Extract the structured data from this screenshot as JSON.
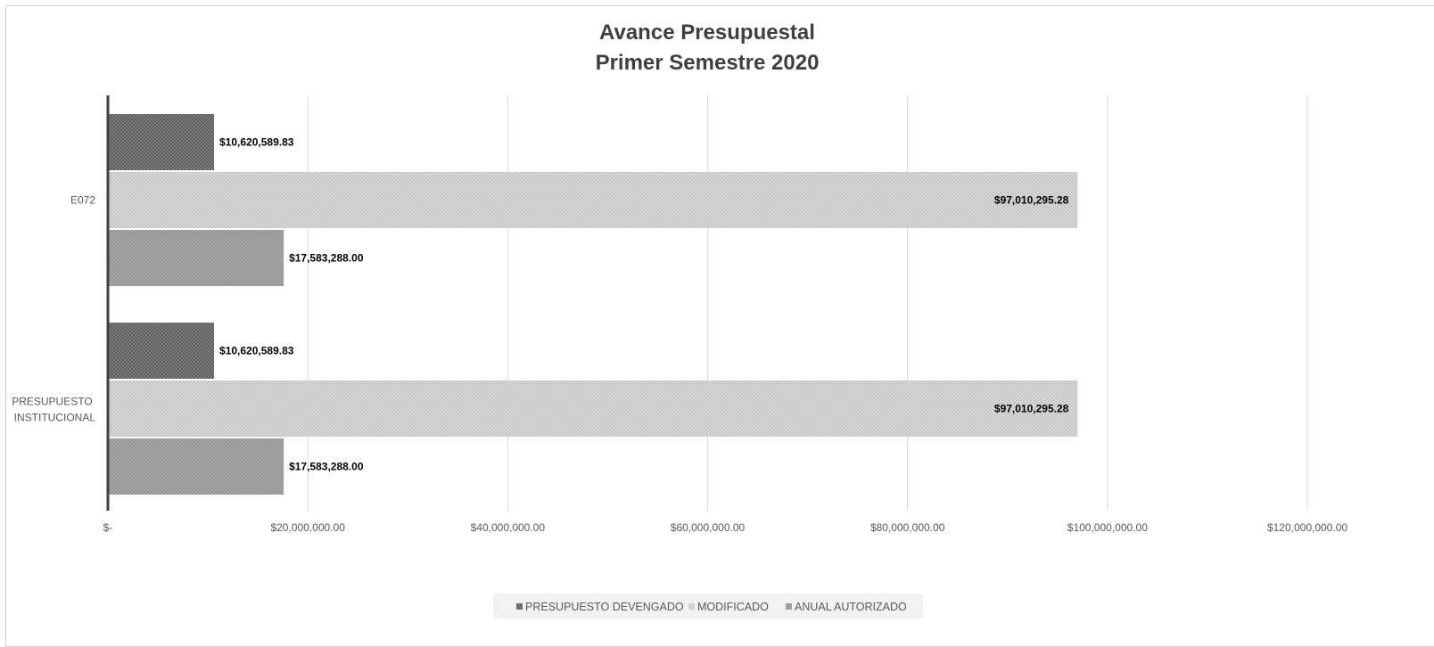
{
  "chart_data": {
    "type": "bar",
    "orientation": "horizontal",
    "title": [
      "Avance Presupuestal",
      "Primer Semestre 2020"
    ],
    "categories": [
      "E072",
      "PRESUPUESTO INSTITUCIONAL"
    ],
    "series": [
      {
        "name": "PRESUPUESTO DEVENGADO",
        "color": "#6e6e6e",
        "values": [
          10620589.83,
          10620589.83
        ],
        "labels": [
          "$10,620,589.83",
          "$10,620,589.83"
        ]
      },
      {
        "name": "MODIFICADO",
        "color": "#cfcfcf",
        "values": [
          97010295.28,
          97010295.28
        ],
        "labels": [
          "$97,010,295.28",
          "$97,010,295.28"
        ]
      },
      {
        "name": "ANUAL AUTORIZADO",
        "color": "#9e9e9e",
        "values": [
          17583288.0,
          17583288.0
        ],
        "labels": [
          "$17,583,288.00",
          "$17,583,288.00"
        ]
      }
    ],
    "xlim": [
      0,
      120000000
    ],
    "xticks": [
      {
        "value": 0,
        "label": "$-"
      },
      {
        "value": 20000000,
        "label": "$20,000,000.00"
      },
      {
        "value": 40000000,
        "label": "$40,000,000.00"
      },
      {
        "value": 60000000,
        "label": "$60,000,000.00"
      },
      {
        "value": 80000000,
        "label": "$80,000,000.00"
      },
      {
        "value": 100000000,
        "label": "$100,000,000.00"
      },
      {
        "value": 120000000,
        "label": "$120,000,000.00"
      }
    ],
    "grid": true,
    "legend_position": "bottom"
  }
}
